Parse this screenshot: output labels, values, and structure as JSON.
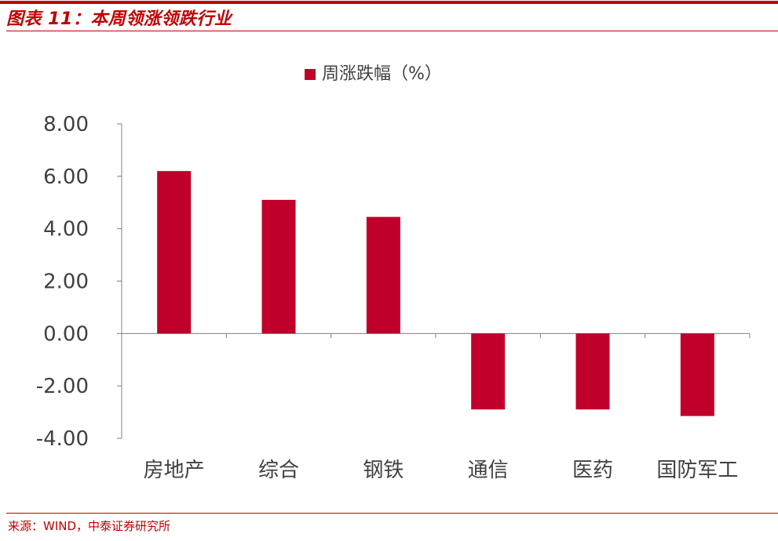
{
  "figure": {
    "title": "图表 11：本周领涨领跌行业",
    "source": "来源：WIND，中泰证券研究所"
  },
  "colors": {
    "accent": "#c00000",
    "bar": "#c0002a",
    "axis": "#808080",
    "text": "#404040"
  },
  "chart_data": {
    "type": "bar",
    "title": "",
    "xlabel": "",
    "ylabel": "",
    "legend_position": "top-center",
    "grid": false,
    "categories": [
      "房地产",
      "综合",
      "钢铁",
      "通信",
      "医药",
      "国防军工"
    ],
    "series": [
      {
        "name": "周涨跌幅（%）",
        "values": [
          6.2,
          5.1,
          4.45,
          -2.9,
          -2.9,
          -3.15
        ]
      }
    ],
    "ylim": [
      -4,
      8
    ],
    "yticks": [
      8,
      6,
      4,
      2,
      0,
      -2,
      -4
    ],
    "ytick_labels": [
      "8.00",
      "6.00",
      "4.00",
      "2.00",
      "0.00",
      "-2.00",
      "-4.00"
    ]
  }
}
